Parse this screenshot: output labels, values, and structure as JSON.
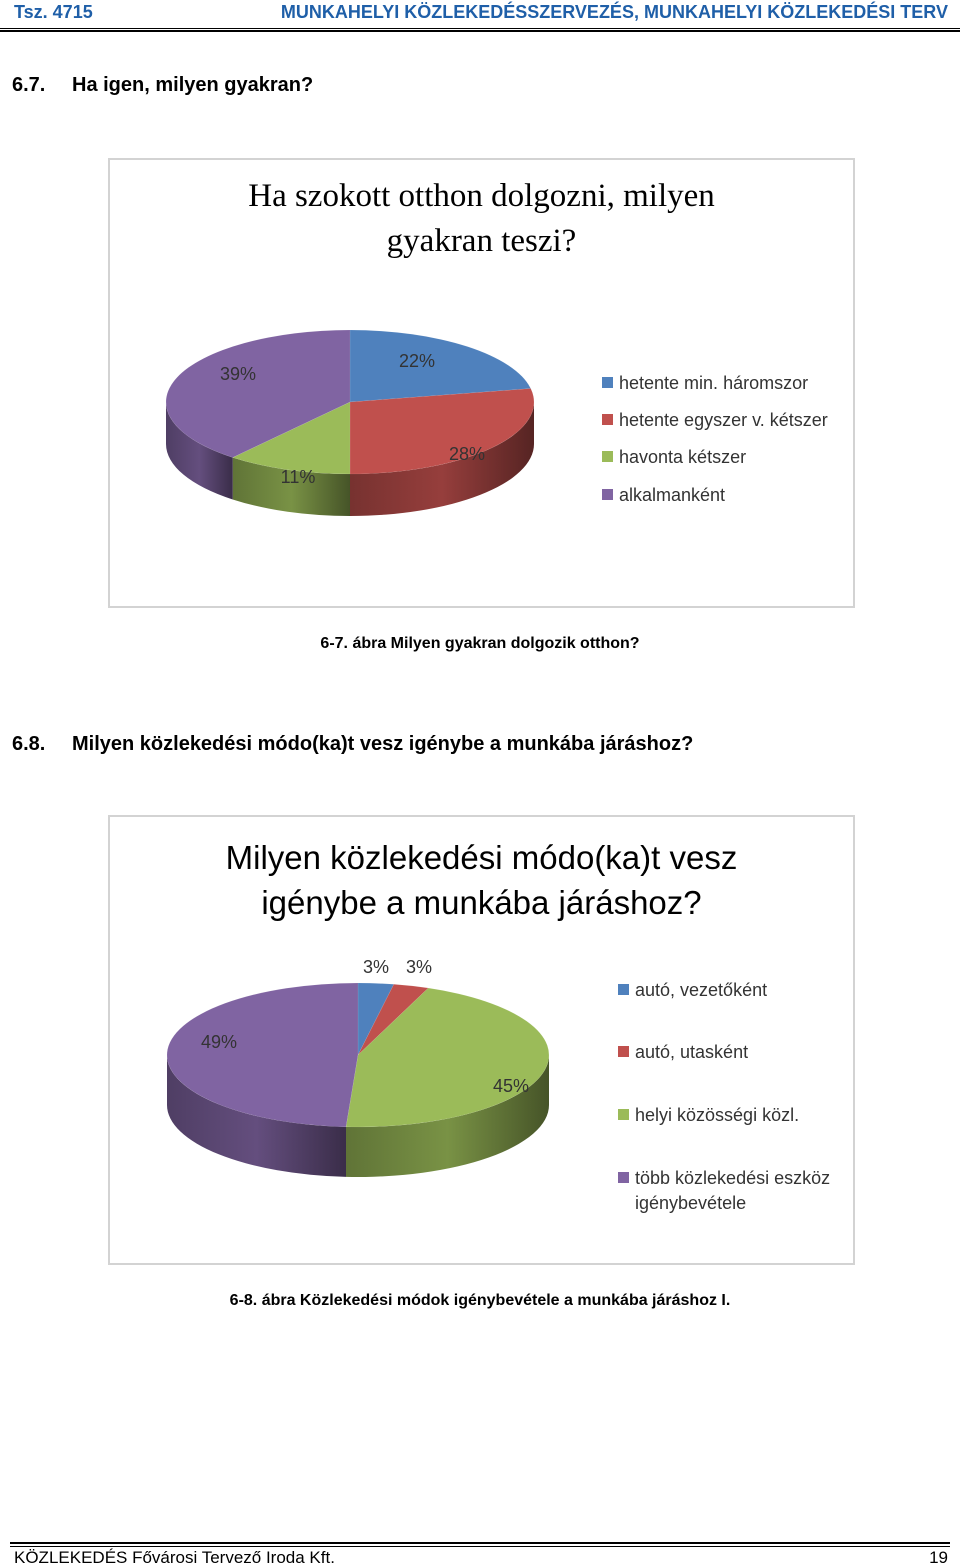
{
  "header": {
    "left": "Tsz. 4715",
    "right": "MUNKAHELYI KÖZLEKEDÉSSZERVEZÉS, MUNKAHELYI KÖZLEKEDÉSI TERV"
  },
  "section1": {
    "number": "6.7.",
    "title": "Ha igen, milyen gyakran?"
  },
  "figure1": {
    "caption": "6-7. ábra Milyen gyakran dolgozik otthon?",
    "chart_data": {
      "type": "pie",
      "title_line1": "Ha szokott otthon dolgozni, milyen",
      "title_line2": "gyakran teszi?",
      "categories": [
        "hetente min. háromszor",
        "hetente egyszer v. kétszer",
        "havonta kétszer",
        "alkalmanként"
      ],
      "values": [
        22,
        28,
        11,
        39
      ],
      "labels": [
        "22%",
        "28%",
        "11%",
        "39%"
      ],
      "colors": [
        "#4f81bd",
        "#c0504d",
        "#9bbb59",
        "#8064a2"
      ],
      "legend_position": "right"
    }
  },
  "section2": {
    "number": "6.8.",
    "title": "Milyen közlekedési módo(ka)t vesz igénybe a munkába járáshoz?"
  },
  "figure2": {
    "caption": "6-8. ábra Közlekedési módok igénybevétele a munkába járáshoz I.",
    "chart_data": {
      "type": "pie",
      "title_line1": "Milyen közlekedési módo(ka)t vesz",
      "title_line2": "igénybe a munkába járáshoz?",
      "categories": [
        "autó, vezetőként",
        "autó, utasként",
        "helyi közösségi közl.",
        "több közlekedési eszköz igénybevétele"
      ],
      "legend_lines": [
        [
          "autó, vezetőként"
        ],
        [
          "autó, utasként"
        ],
        [
          "helyi közösségi közl."
        ],
        [
          "több közlekedési eszköz",
          "igénybevétele"
        ]
      ],
      "values": [
        3,
        3,
        45,
        49
      ],
      "labels": [
        "3%",
        "3%",
        "45%",
        "49%"
      ],
      "colors": [
        "#4f81bd",
        "#c0504d",
        "#9bbb59",
        "#8064a2"
      ],
      "legend_position": "right"
    }
  },
  "footer": {
    "left": "KÖZLEKEDÉS Fővárosi Tervező Iroda Kft.",
    "right": "19"
  }
}
